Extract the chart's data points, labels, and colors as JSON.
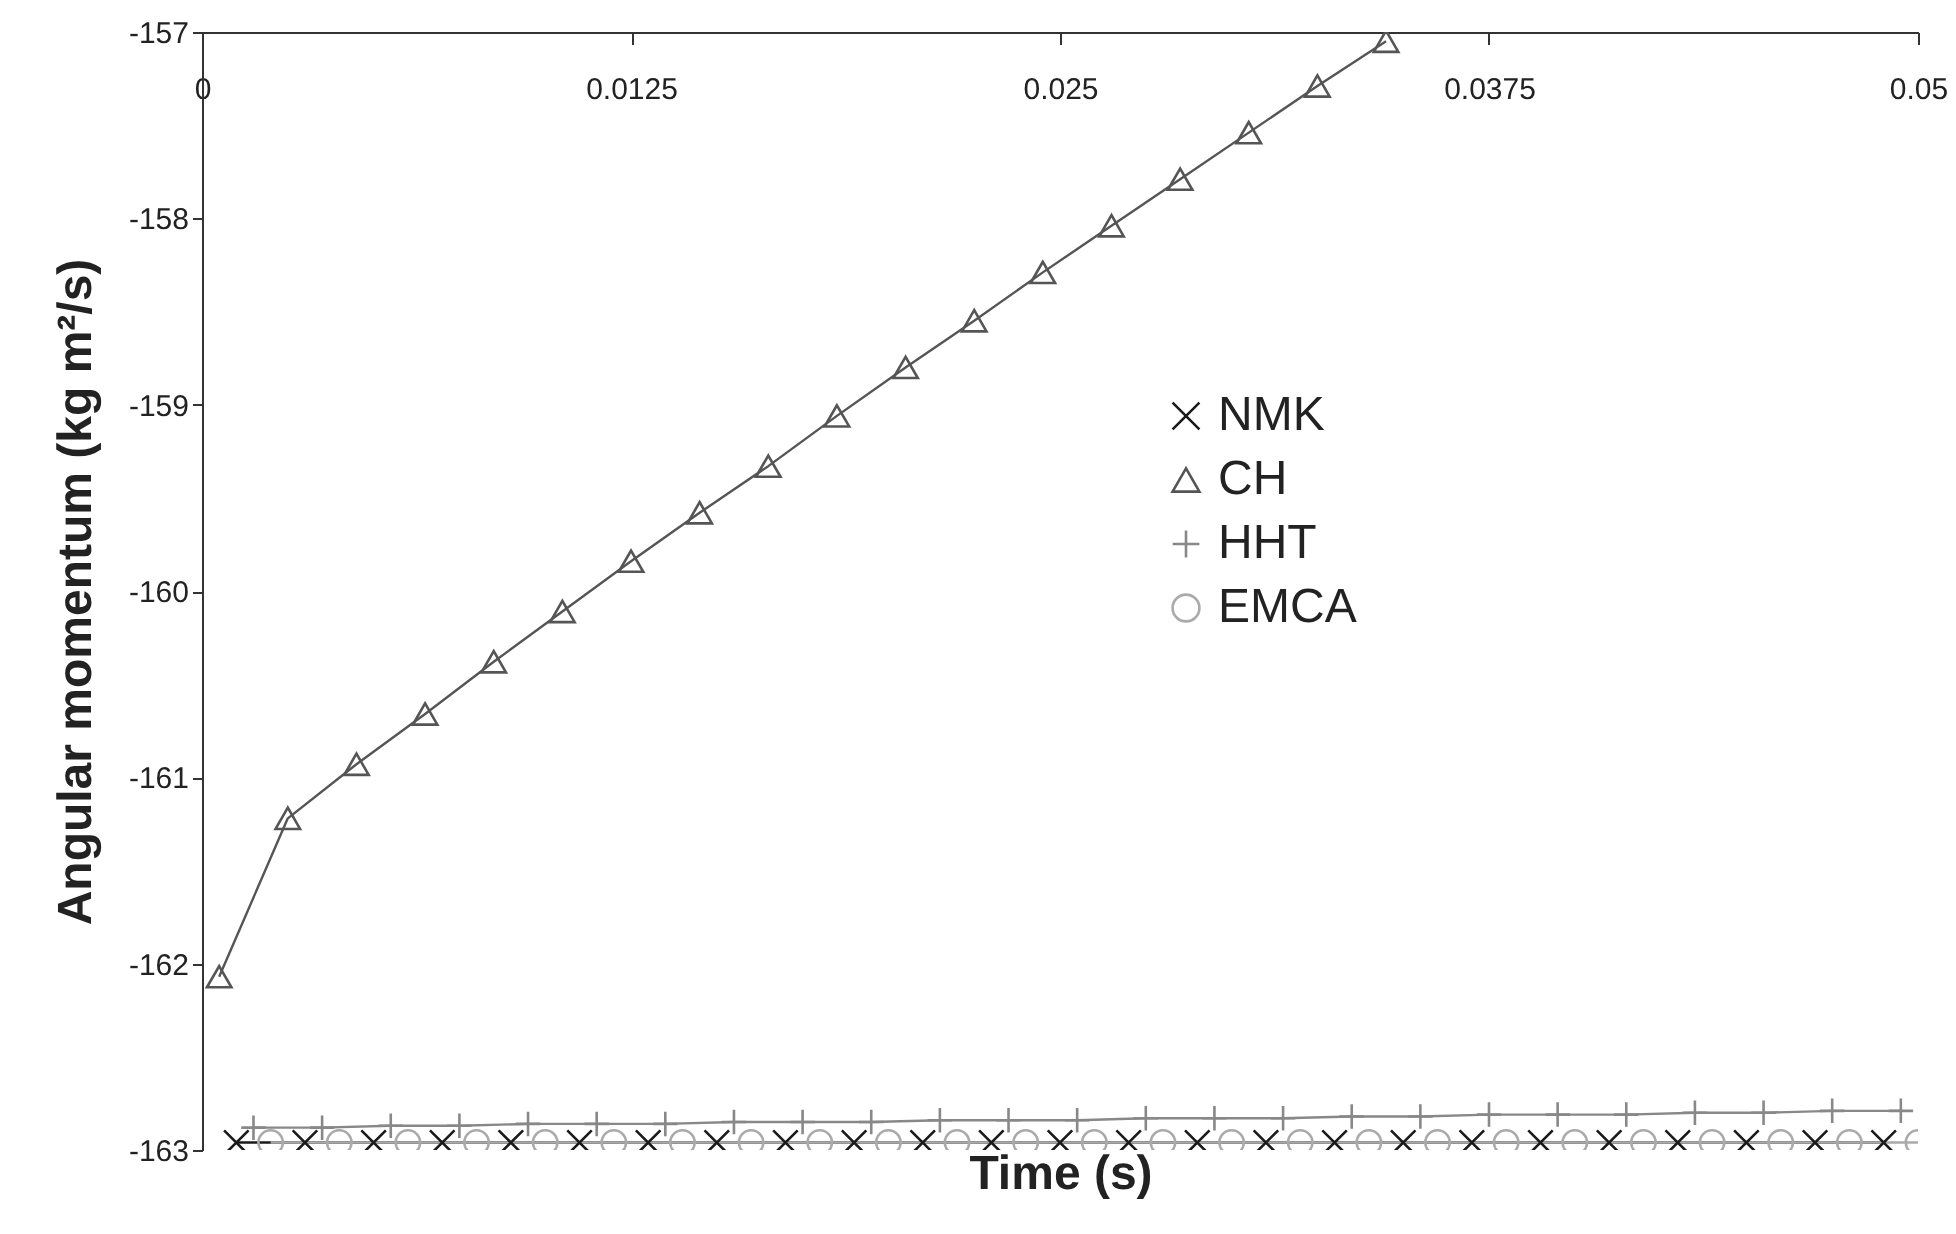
{
  "chart_data": {
    "type": "line",
    "xlabel": "Time (s)",
    "ylabel": "Angular momentum (kg m²/s)",
    "xlim": [
      0,
      0.05
    ],
    "xticks": [
      0,
      0.0125,
      0.025,
      0.0375,
      0.05
    ],
    "ylim": [
      -163,
      -157
    ],
    "yticks": [
      -163,
      -162,
      -161,
      -160,
      -159,
      -158,
      -157
    ],
    "grid": false,
    "legend": "right",
    "series": [
      {
        "name": "NMK",
        "color": "#1a1a1a",
        "marker": "cross",
        "x": [
          0.001,
          0.003,
          0.005,
          0.007,
          0.009,
          0.011,
          0.013,
          0.015,
          0.017,
          0.019,
          0.021,
          0.023,
          0.025,
          0.027,
          0.029,
          0.031,
          0.033,
          0.035,
          0.037,
          0.039,
          0.041,
          0.043,
          0.045,
          0.047,
          0.049
        ],
        "values": [
          -162.96,
          -162.96,
          -162.96,
          -162.96,
          -162.96,
          -162.96,
          -162.96,
          -162.96,
          -162.96,
          -162.96,
          -162.96,
          -162.96,
          -162.96,
          -162.96,
          -162.96,
          -162.96,
          -162.96,
          -162.96,
          -162.96,
          -162.96,
          -162.96,
          -162.96,
          -162.96,
          -162.96,
          -162.96
        ]
      },
      {
        "name": "CH",
        "color": "#555555",
        "marker": "triangle",
        "x": [
          0.0005,
          0.0025,
          0.0045,
          0.0065,
          0.0085,
          0.0105,
          0.0125,
          0.0145,
          0.0165,
          0.0185,
          0.0205,
          0.0225,
          0.0245,
          0.0265,
          0.0285,
          0.0305,
          0.0325,
          0.0345
        ],
        "values": [
          -162.07,
          -161.22,
          -160.93,
          -160.66,
          -160.38,
          -160.11,
          -159.84,
          -159.58,
          -159.33,
          -159.06,
          -158.8,
          -158.55,
          -158.29,
          -158.04,
          -157.79,
          -157.54,
          -157.29,
          -157.05
        ]
      },
      {
        "name": "HHT",
        "color": "#888888",
        "marker": "plus",
        "x": [
          0.0015,
          0.0035,
          0.0055,
          0.0075,
          0.0095,
          0.0115,
          0.0135,
          0.0155,
          0.0175,
          0.0195,
          0.0215,
          0.0235,
          0.0255,
          0.0275,
          0.0295,
          0.0315,
          0.0335,
          0.0355,
          0.0375,
          0.0395,
          0.0415,
          0.0435,
          0.0455,
          0.0475,
          0.0495
        ],
        "values": [
          -162.88,
          -162.88,
          -162.87,
          -162.87,
          -162.86,
          -162.86,
          -162.86,
          -162.85,
          -162.85,
          -162.85,
          -162.84,
          -162.84,
          -162.84,
          -162.83,
          -162.83,
          -162.83,
          -162.82,
          -162.82,
          -162.81,
          -162.81,
          -162.81,
          -162.8,
          -162.8,
          -162.79,
          -162.79
        ]
      },
      {
        "name": "EMCA",
        "color": "#aaaaaa",
        "marker": "circle",
        "x": [
          0.002,
          0.004,
          0.006,
          0.008,
          0.01,
          0.012,
          0.014,
          0.016,
          0.018,
          0.02,
          0.022,
          0.024,
          0.026,
          0.028,
          0.03,
          0.032,
          0.034,
          0.036,
          0.038,
          0.04,
          0.042,
          0.044,
          0.046,
          0.048,
          0.05
        ],
        "values": [
          -162.96,
          -162.96,
          -162.96,
          -162.96,
          -162.96,
          -162.96,
          -162.96,
          -162.96,
          -162.96,
          -162.96,
          -162.96,
          -162.96,
          -162.96,
          -162.96,
          -162.96,
          -162.96,
          -162.96,
          -162.96,
          -162.96,
          -162.96,
          -162.96,
          -162.96,
          -162.96,
          -162.96,
          -162.96
        ]
      }
    ]
  }
}
